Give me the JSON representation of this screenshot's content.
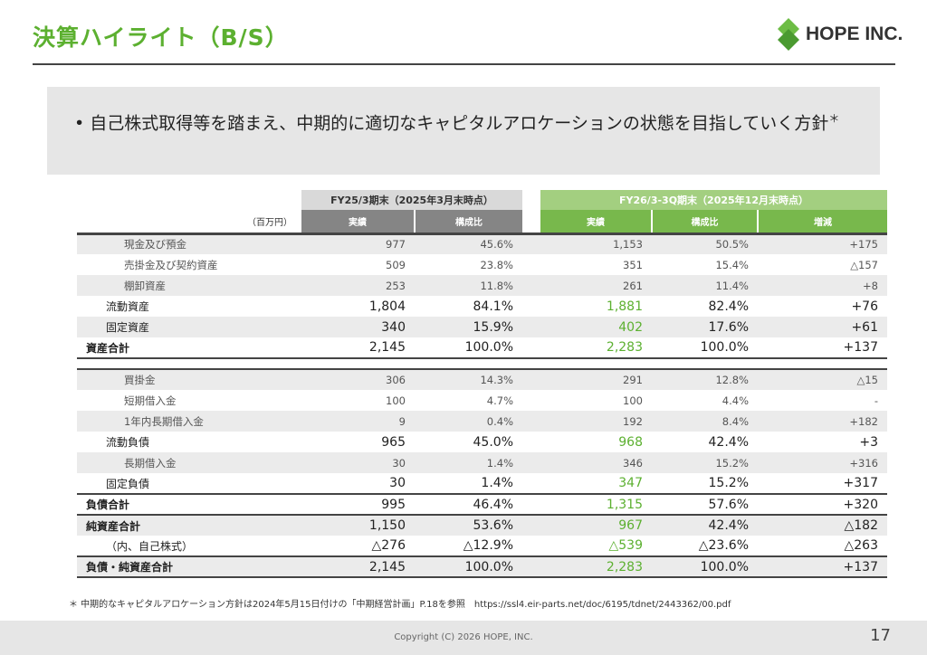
{
  "title": "決算ハイライト（B/S）",
  "logo_text": "HOPE INC.",
  "message": "自己株式取得等を踏まえ、中期的に適切なキャピタルアロケーションの状態を目指していく方針",
  "message_mark": "＊",
  "table": {
    "unit": "（百万円）",
    "group_prev": "FY25/3期末（2025年3月末時点）",
    "group_curr": "FY26/3-3Q期末（2025年12月末時点）",
    "col_headers": [
      "実績",
      "構成比",
      "実績",
      "構成比",
      "増減"
    ],
    "rows": [
      {
        "type": "sub",
        "g": 1,
        "label": "現金及び預金",
        "v": [
          "977",
          "45.6%",
          "1,153",
          "50.5%",
          "+175"
        ]
      },
      {
        "type": "sub",
        "g": 0,
        "label": "売掛金及び契約資産",
        "v": [
          "509",
          "23.8%",
          "351",
          "15.4%",
          "△157"
        ]
      },
      {
        "type": "sub",
        "g": 1,
        "label": "棚卸資産",
        "v": [
          "253",
          "11.8%",
          "261",
          "11.4%",
          "+8"
        ]
      },
      {
        "type": "mid",
        "g": 0,
        "label": "流動資産",
        "v": [
          "1,804",
          "84.1%",
          "1,881",
          "82.4%",
          "+76"
        ]
      },
      {
        "type": "mid",
        "g": 1,
        "label": "固定資産",
        "v": [
          "340",
          "15.9%",
          "402",
          "17.6%",
          "+61"
        ]
      },
      {
        "type": "tot",
        "g": 0,
        "label": "資産合計",
        "v": [
          "2,145",
          "100.0%",
          "2,283",
          "100.0%",
          "+137"
        ]
      },
      {
        "type": "spacer"
      },
      {
        "type": "sub",
        "g": 1,
        "label": "買掛金",
        "v": [
          "306",
          "14.3%",
          "291",
          "12.8%",
          "△15"
        ]
      },
      {
        "type": "sub",
        "g": 0,
        "label": "短期借入金",
        "v": [
          "100",
          "4.7%",
          "100",
          "4.4%",
          "-"
        ]
      },
      {
        "type": "sub",
        "g": 1,
        "label": "1年内長期借入金",
        "v": [
          "9",
          "0.4%",
          "192",
          "8.4%",
          "+182"
        ]
      },
      {
        "type": "mid",
        "g": 0,
        "label": "流動負債",
        "v": [
          "965",
          "45.0%",
          "968",
          "42.4%",
          "+3"
        ]
      },
      {
        "type": "sub",
        "g": 1,
        "label": "長期借入金",
        "v": [
          "30",
          "1.4%",
          "346",
          "15.2%",
          "+316"
        ]
      },
      {
        "type": "mid",
        "g": 0,
        "label": "固定負債",
        "v": [
          "30",
          "1.4%",
          "347",
          "15.2%",
          "+317"
        ],
        "bb": 1
      },
      {
        "type": "tot",
        "g": 0,
        "label": "負債合計",
        "v": [
          "995",
          "46.4%",
          "1,315",
          "57.6%",
          "+320"
        ],
        "bb": 1
      },
      {
        "type": "tot",
        "g": 1,
        "label": "純資産合計",
        "v": [
          "1,150",
          "53.6%",
          "967",
          "42.4%",
          "△182"
        ]
      },
      {
        "type": "mid",
        "g": 0,
        "label": "（内、自己株式）",
        "v": [
          "△276",
          "△12.9%",
          "△539",
          "△23.6%",
          "△263"
        ],
        "bb": 1
      },
      {
        "type": "tot",
        "g": 1,
        "label": "負債・純資産合計",
        "v": [
          "2,145",
          "100.0%",
          "2,283",
          "100.0%",
          "+137"
        ],
        "bb": 1
      }
    ]
  },
  "footnote": "＊ 中期的なキャピタルアロケーション方針は2024年5月15日付けの「中期経営計画」P.18を参照　https://ssl4.eir-parts.net/doc/6195/tdnet/2443362/00.pdf",
  "copyright": "Copyright (C) 2026 HOPE, INC.",
  "page_number": "17",
  "colors": {
    "green": "#5cb030",
    "header_green": "#78b84c",
    "header_light_green": "#a3cf80",
    "header_grey": "#858585",
    "header_light_grey": "#d9d9d9"
  }
}
